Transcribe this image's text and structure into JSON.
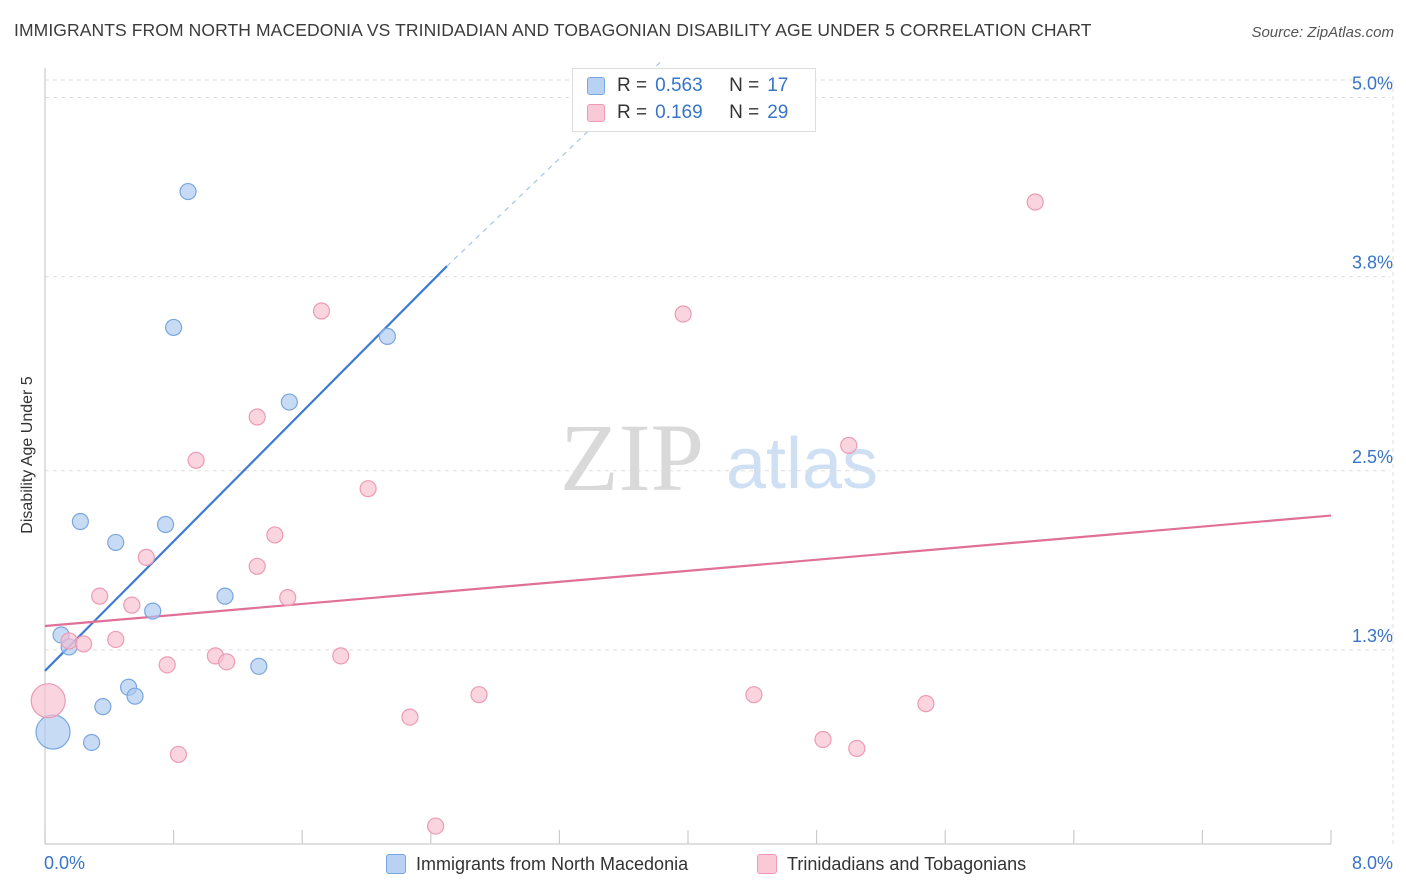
{
  "header": {
    "title": "IMMIGRANTS FROM NORTH MACEDONIA VS TRINIDADIAN AND TOBAGONIAN DISABILITY AGE UNDER 5 CORRELATION CHART",
    "source": "Source: ZipAtlas.com"
  },
  "watermark": {
    "zip": "ZIP",
    "atlas": "atlas"
  },
  "legend": {
    "r_label": "R =",
    "n_label": "N =",
    "series1": {
      "r": "0.563",
      "n": "17"
    },
    "series2": {
      "r": "0.169",
      "n": "29"
    }
  },
  "colors": {
    "blue_fill": "#aac8f0",
    "blue_stroke": "#7aa6e0",
    "blue_line": "#3b7bd4",
    "pink_fill": "#f7bfd0",
    "pink_stroke": "#ee9ab4",
    "pink_line": "#e07098",
    "tick_text": "#3874c8",
    "grid": "#dddddd"
  },
  "chart_data": {
    "type": "scatter",
    "title": "IMMIGRANTS FROM NORTH MACEDONIA VS TRINIDADIAN AND TOBAGONIAN DISABILITY AGE UNDER 5 CORRELATION CHART",
    "xlabel": "",
    "ylabel": "Disability Age Under 5",
    "xlim": [
      0.0,
      8.0
    ],
    "ylim": [
      0.0,
      5.0
    ],
    "x_tick_labels": {
      "min": "0.0%",
      "max": "8.0%"
    },
    "y_ticks": [
      {
        "value": 5.0,
        "label": "5.0%"
      },
      {
        "value": 3.8,
        "label": "3.8%"
      },
      {
        "value": 2.5,
        "label": "2.5%"
      },
      {
        "value": 1.3,
        "label": "1.3%"
      }
    ],
    "grid": true,
    "series": [
      {
        "name": "Immigrants from North Macedonia",
        "color": "#aac8f0",
        "r": 0.563,
        "n": 17,
        "trend": {
          "x0": 0.0,
          "y0": 1.16,
          "x1": 2.5,
          "y1": 3.87,
          "dash_x1": 3.85,
          "dash_y1": 5.26
        },
        "points": [
          {
            "x": 0.05,
            "y": 0.75,
            "big": true
          },
          {
            "x": 0.1,
            "y": 1.4
          },
          {
            "x": 0.15,
            "y": 1.32
          },
          {
            "x": 0.22,
            "y": 2.16
          },
          {
            "x": 0.29,
            "y": 0.68
          },
          {
            "x": 0.36,
            "y": 0.92
          },
          {
            "x": 0.44,
            "y": 2.02
          },
          {
            "x": 0.52,
            "y": 1.05
          },
          {
            "x": 0.56,
            "y": 0.99
          },
          {
            "x": 0.67,
            "y": 1.56
          },
          {
            "x": 0.75,
            "y": 2.14
          },
          {
            "x": 0.8,
            "y": 3.46
          },
          {
            "x": 0.89,
            "y": 4.37
          },
          {
            "x": 1.12,
            "y": 1.66
          },
          {
            "x": 1.33,
            "y": 1.19
          },
          {
            "x": 1.52,
            "y": 2.96
          },
          {
            "x": 2.13,
            "y": 3.4
          }
        ]
      },
      {
        "name": "Trinidadians and Tobagonians",
        "color": "#f7bfd0",
        "r": 0.169,
        "n": 29,
        "trend": {
          "x0": 0.0,
          "y0": 1.46,
          "x1": 8.0,
          "y1": 2.2
        },
        "points": [
          {
            "x": 0.02,
            "y": 0.96,
            "big": true
          },
          {
            "x": 0.15,
            "y": 1.36
          },
          {
            "x": 0.24,
            "y": 1.34
          },
          {
            "x": 0.34,
            "y": 1.66
          },
          {
            "x": 0.44,
            "y": 1.37
          },
          {
            "x": 0.54,
            "y": 1.6
          },
          {
            "x": 0.63,
            "y": 1.92
          },
          {
            "x": 0.76,
            "y": 1.2
          },
          {
            "x": 0.83,
            "y": 0.6
          },
          {
            "x": 0.94,
            "y": 2.57
          },
          {
            "x": 1.06,
            "y": 1.26
          },
          {
            "x": 1.13,
            "y": 1.22
          },
          {
            "x": 1.32,
            "y": 1.86
          },
          {
            "x": 1.32,
            "y": 2.86
          },
          {
            "x": 1.43,
            "y": 2.07
          },
          {
            "x": 1.51,
            "y": 1.65
          },
          {
            "x": 1.72,
            "y": 3.57
          },
          {
            "x": 1.84,
            "y": 1.26
          },
          {
            "x": 2.01,
            "y": 2.38
          },
          {
            "x": 2.27,
            "y": 0.85
          },
          {
            "x": 2.43,
            "y": 0.12
          },
          {
            "x": 2.7,
            "y": 1.0
          },
          {
            "x": 3.97,
            "y": 3.55
          },
          {
            "x": 4.41,
            "y": 1.0
          },
          {
            "x": 4.84,
            "y": 0.7
          },
          {
            "x": 5.0,
            "y": 2.67
          },
          {
            "x": 5.05,
            "y": 0.64
          },
          {
            "x": 5.48,
            "y": 0.94
          },
          {
            "x": 6.16,
            "y": 4.3
          }
        ]
      }
    ]
  }
}
